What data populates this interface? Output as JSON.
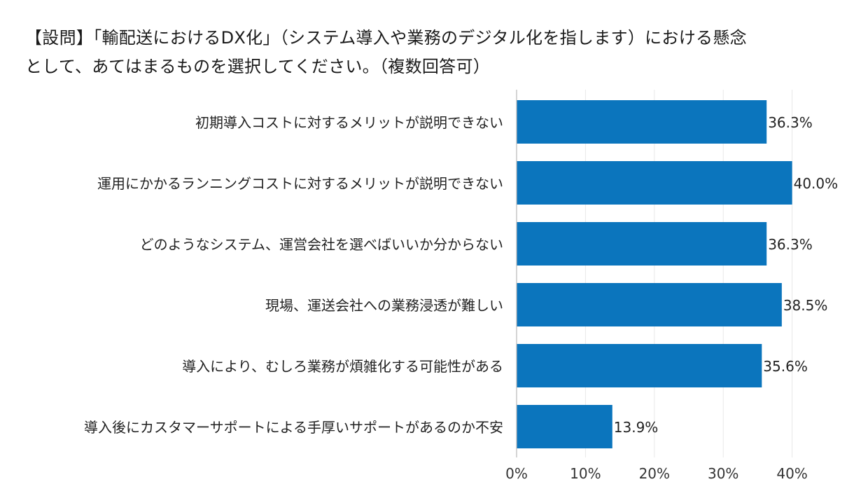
{
  "question": "【設問】「輸配送におけるDX化」（システム導入や業務のデジタル化を指します）における懸念\nとして、あてはまるものを選択してください。（複数回答可）",
  "chart_data": {
    "type": "bar",
    "orientation": "horizontal",
    "categories": [
      "初期導入コストに対するメリットが説明できない",
      "運用にかかるランニングコストに対するメリットが説明できない",
      "どのようなシステム、運営会社を選べばいいか分からない",
      "現場、運送会社への業務浸透が難しい",
      "導入により、むしろ業務が煩雑化する可能性がある",
      "導入後にカスタマーサポートによる手厚いサポートがあるのか不安"
    ],
    "values": [
      36.3,
      40.0,
      36.3,
      38.5,
      35.6,
      13.9
    ],
    "value_labels": [
      "36.3%",
      "40.0%",
      "36.3%",
      "38.5%",
      "35.6%",
      "13.9%"
    ],
    "xlim": [
      0,
      40
    ],
    "xticks": [
      0,
      10,
      20,
      30,
      40
    ],
    "xtick_labels": [
      "0%",
      "10%",
      "20%",
      "30%",
      "40%"
    ],
    "grid": true,
    "bar_color": "#0b75bd",
    "grid_color": "#e8e8e8",
    "axis_color": "#b8b8b8"
  }
}
